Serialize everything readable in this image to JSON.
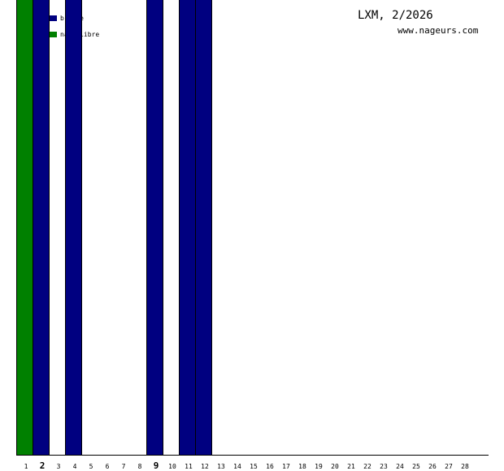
{
  "header": {
    "title": "LXM, 2/2026",
    "site": "www.nageurs.com"
  },
  "colors": {
    "brasse": "#000080",
    "nage_libre": "#008000",
    "axis": "#000000"
  },
  "chart_data": {
    "type": "bar",
    "title": "LXM, 2/2026",
    "xlabel": "",
    "ylabel": "",
    "categories": [
      "1",
      "2",
      "3",
      "4",
      "5",
      "6",
      "7",
      "8",
      "9",
      "10",
      "11",
      "12",
      "13",
      "14",
      "15",
      "16",
      "17",
      "18",
      "19",
      "20",
      "21",
      "22",
      "23",
      "24",
      "25",
      "26",
      "27",
      "28"
    ],
    "bold_categories": [
      "2",
      "9"
    ],
    "ylim": [
      0,
      1600
    ],
    "grid": false,
    "legend_position": "top-left",
    "series": [
      {
        "name": "brasse",
        "color": "#000080",
        "points": [
          {
            "x": "2",
            "y": 1550
          },
          {
            "x": "4",
            "y": 1250
          },
          {
            "x": "9",
            "y": 1600
          },
          {
            "x": "11",
            "y": 1500
          },
          {
            "x": "12",
            "y": 1200
          }
        ]
      },
      {
        "name": "nage libre",
        "color": "#008000",
        "points": [
          {
            "x": "1",
            "y": 1450
          }
        ]
      }
    ]
  }
}
